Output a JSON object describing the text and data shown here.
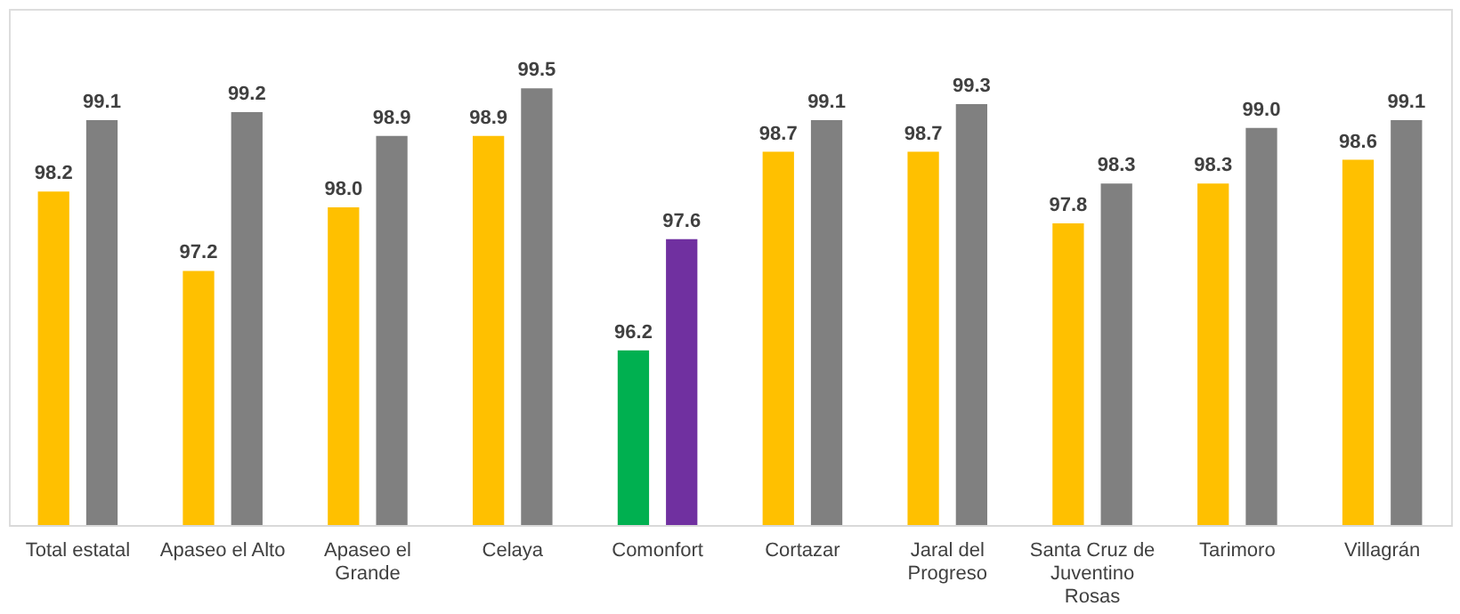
{
  "chart_data": {
    "type": "bar",
    "categories": [
      "Total estatal",
      "Apaseo el Alto",
      "Apaseo el Grande",
      "Celaya",
      "Comonfort",
      "Cortazar",
      "Jaral del Progreso",
      "Santa Cruz de Juventino Rosas",
      "Tarimoro",
      "Villagrán"
    ],
    "series": [
      {
        "colors": [
          "#ffc000",
          "#ffc000",
          "#ffc000",
          "#ffc000",
          "#00b050",
          "#ffc000",
          "#ffc000",
          "#ffc000",
          "#ffc000",
          "#ffc000"
        ],
        "values": [
          98.2,
          97.2,
          98.0,
          98.9,
          96.2,
          98.7,
          98.7,
          97.8,
          98.3,
          98.6
        ],
        "value_labels": [
          "98.2",
          "97.2",
          "98.0",
          "98.9",
          "96.2",
          "98.7",
          "98.7",
          "97.8",
          "98.3",
          "98.6"
        ]
      },
      {
        "colors": [
          "#808080",
          "#808080",
          "#808080",
          "#808080",
          "#7030a0",
          "#808080",
          "#808080",
          "#808080",
          "#808080",
          "#808080"
        ],
        "values": [
          99.1,
          99.2,
          98.9,
          99.5,
          97.6,
          99.1,
          99.3,
          98.3,
          99.0,
          99.1
        ],
        "value_labels": [
          "99.1",
          "99.2",
          "98.9",
          "99.5",
          "97.6",
          "99.1",
          "99.3",
          "98.3",
          "99.0",
          "99.1"
        ]
      }
    ],
    "ylim": [
      94,
      100.5
    ],
    "tick_labels": "x",
    "grid": false
  }
}
